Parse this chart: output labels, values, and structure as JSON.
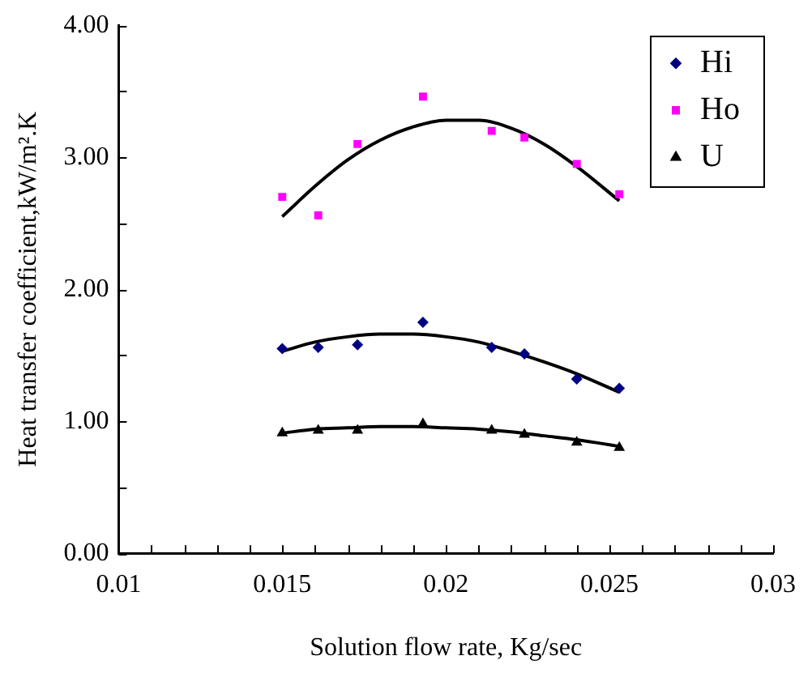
{
  "chart_data": {
    "type": "scatter",
    "xlabel": "Solution flow rate, Kg/sec",
    "ylabel": "Heat transfer coefficient,kW/m².K",
    "x": [
      0.015,
      0.0161,
      0.0173,
      0.0193,
      0.0214,
      0.0224,
      0.024,
      0.0253
    ],
    "series": [
      {
        "name": "Hi",
        "color": "#000080",
        "marker": "diamond",
        "values": [
          1.55,
          1.56,
          1.58,
          1.75,
          1.56,
          1.51,
          1.32,
          1.25
        ]
      },
      {
        "name": "Ho",
        "color": "#ff00ff",
        "marker": "square",
        "values": [
          2.7,
          2.56,
          3.1,
          3.46,
          3.2,
          3.15,
          2.95,
          2.72
        ]
      },
      {
        "name": "U",
        "color": "#000000",
        "marker": "triangle",
        "values": [
          0.91,
          0.93,
          0.93,
          0.98,
          0.93,
          0.9,
          0.84,
          0.8
        ]
      },
      {
        "type": "line",
        "color": "#000000",
        "marker": "none",
        "x": [
          0.015,
          0.016,
          0.017,
          0.018,
          0.019,
          0.02,
          0.021,
          0.022,
          0.023,
          0.024,
          0.0253
        ],
        "values": [
          2.55,
          2.78,
          2.98,
          3.13,
          3.23,
          3.28,
          3.28,
          3.22,
          3.1,
          2.93,
          2.67
        ]
      },
      {
        "type": "line",
        "color": "#000000",
        "marker": "none",
        "x": [
          0.015,
          0.016,
          0.017,
          0.018,
          0.019,
          0.02,
          0.021,
          0.022,
          0.023,
          0.024,
          0.0253
        ],
        "values": [
          1.53,
          1.6,
          1.64,
          1.66,
          1.66,
          1.64,
          1.6,
          1.53,
          1.45,
          1.36,
          1.22
        ]
      },
      {
        "type": "line",
        "color": "#000000",
        "marker": "none",
        "x": [
          0.015,
          0.016,
          0.017,
          0.018,
          0.019,
          0.02,
          0.021,
          0.022,
          0.023,
          0.024,
          0.0253
        ],
        "values": [
          0.91,
          0.94,
          0.95,
          0.96,
          0.96,
          0.95,
          0.94,
          0.92,
          0.89,
          0.86,
          0.81
        ]
      }
    ],
    "xlim": [
      0.01,
      0.03
    ],
    "xticks": [
      {
        "value": 0.01,
        "label": "0.01"
      },
      {
        "value": 0.011,
        "label": null
      },
      {
        "value": 0.012,
        "label": null
      },
      {
        "value": 0.013,
        "label": null
      },
      {
        "value": 0.014,
        "label": null
      },
      {
        "value": 0.015,
        "label": "0.015"
      },
      {
        "value": 0.016,
        "label": null
      },
      {
        "value": 0.017,
        "label": null
      },
      {
        "value": 0.018,
        "label": null
      },
      {
        "value": 0.019,
        "label": null
      },
      {
        "value": 0.02,
        "label": "0.02"
      },
      {
        "value": 0.021,
        "label": null
      },
      {
        "value": 0.022,
        "label": null
      },
      {
        "value": 0.023,
        "label": null
      },
      {
        "value": 0.024,
        "label": null
      },
      {
        "value": 0.025,
        "label": "0.025"
      },
      {
        "value": 0.026,
        "label": null
      },
      {
        "value": 0.027,
        "label": null
      },
      {
        "value": 0.028,
        "label": null
      },
      {
        "value": 0.029,
        "label": null
      },
      {
        "value": 0.03,
        "label": "0.03"
      }
    ],
    "ylim": [
      0,
      4
    ],
    "yticks": [
      {
        "value": 0,
        "label": "0.00"
      },
      {
        "value": 0.5,
        "label": null
      },
      {
        "value": 1,
        "label": "1.00"
      },
      {
        "value": 1.5,
        "label": null
      },
      {
        "value": 2,
        "label": "2.00"
      },
      {
        "value": 2.5,
        "label": null
      },
      {
        "value": 3,
        "label": "3.00"
      },
      {
        "value": 3.5,
        "label": null
      },
      {
        "value": 4,
        "label": "4.00"
      }
    ],
    "grid": false,
    "legend": "top right"
  }
}
